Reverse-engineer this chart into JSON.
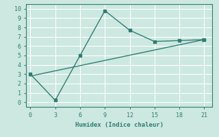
{
  "line1_x": [
    0,
    3,
    6,
    9,
    12,
    15,
    18,
    21
  ],
  "line1_y": [
    3.0,
    0.2,
    5.0,
    9.8,
    7.7,
    6.5,
    6.6,
    6.7
  ],
  "line2_x": [
    0,
    21
  ],
  "line2_y": [
    2.8,
    6.7
  ],
  "color": "#2e7d72",
  "bg_color": "#cce8e0",
  "grid_color": "#ffffff",
  "xlabel": "Humidex (Indice chaleur)",
  "xlim": [
    -0.5,
    22
  ],
  "ylim": [
    -0.5,
    10.5
  ],
  "xticks": [
    0,
    3,
    6,
    9,
    12,
    15,
    18,
    21
  ],
  "yticks": [
    0,
    1,
    2,
    3,
    4,
    5,
    6,
    7,
    8,
    9,
    10
  ],
  "markersize": 3.5,
  "linewidth": 1.0
}
